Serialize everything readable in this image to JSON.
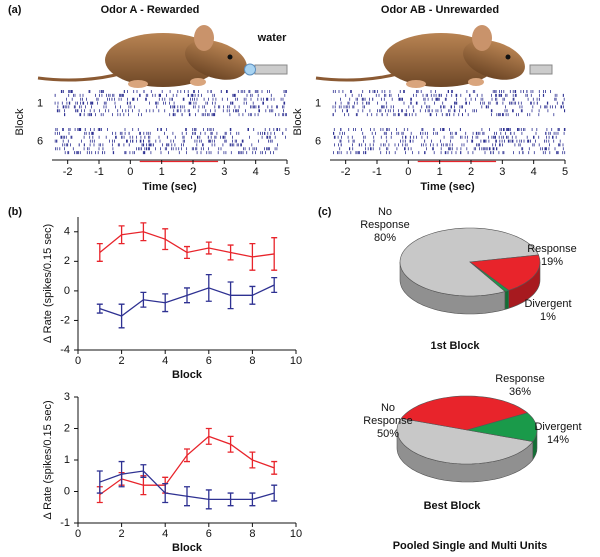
{
  "panel_labels": [
    "(a)",
    "(b)",
    "(c)"
  ],
  "caption": "Pooled Single and Multi Units",
  "chart_data": [
    {
      "type": "raster",
      "title": "Odor A - Rewarded",
      "title_color": "#e8242b",
      "annotation": "water",
      "ylabel": "Block",
      "rows": [
        "1",
        "6"
      ],
      "xlabel": "Time (sec)",
      "xlim": [
        -2.5,
        5
      ],
      "xticks": [
        -2,
        -1,
        0,
        1,
        2,
        3,
        4,
        5
      ],
      "color": "#2e3192"
    },
    {
      "type": "raster",
      "title": "Odor AB - Unrewarded",
      "title_color": "#2e3192",
      "ylabel": "Block",
      "rows": [
        "1",
        "6"
      ],
      "xlabel": "Time (sec)",
      "xlim": [
        -2.5,
        5
      ],
      "xticks": [
        -2,
        -1,
        0,
        1,
        2,
        3,
        4,
        5
      ],
      "color": "#2e3192"
    },
    {
      "type": "line",
      "xlabel": "Block",
      "ylabel": "Δ Rate (spikes/0.15 sec)",
      "x": [
        1,
        2,
        3,
        4,
        5,
        6,
        7,
        8,
        9
      ],
      "xlim": [
        0,
        10
      ],
      "xticks": [
        0,
        2,
        4,
        6,
        8,
        10
      ],
      "ylim": [
        -4,
        5
      ],
      "yticks": [
        -4,
        -2,
        0,
        2,
        4
      ],
      "series": [
        {
          "color": "#e8242b",
          "values": [
            2.6,
            3.8,
            4.0,
            3.5,
            2.6,
            2.9,
            2.6,
            2.3,
            2.5
          ],
          "errors": [
            0.6,
            0.6,
            0.6,
            0.7,
            0.4,
            0.4,
            0.5,
            0.9,
            1.1
          ]
        },
        {
          "color": "#2e3192",
          "values": [
            -1.2,
            -1.7,
            -0.6,
            -0.8,
            -0.3,
            0.2,
            -0.3,
            -0.3,
            0.4
          ],
          "errors": [
            0.3,
            0.8,
            0.5,
            0.6,
            0.5,
            0.9,
            0.9,
            0.6,
            0.5
          ]
        }
      ]
    },
    {
      "type": "line",
      "xlabel": "Block",
      "ylabel": "Δ Rate (spikes/0.15 sec)",
      "x": [
        1,
        2,
        3,
        4,
        5,
        6,
        7,
        8,
        9
      ],
      "xlim": [
        0,
        10
      ],
      "xticks": [
        0,
        2,
        4,
        6,
        8,
        10
      ],
      "ylim": [
        -1,
        3
      ],
      "yticks": [
        -1,
        0,
        1,
        2,
        3
      ],
      "series": [
        {
          "color": "#e8242b",
          "values": [
            -0.1,
            0.4,
            0.2,
            0.2,
            1.15,
            1.75,
            1.5,
            1.0,
            0.75
          ],
          "errors": [
            0.25,
            0.2,
            0.3,
            0.25,
            0.2,
            0.25,
            0.25,
            0.25,
            0.2
          ]
        },
        {
          "color": "#2e3192",
          "values": [
            0.3,
            0.55,
            0.65,
            -0.05,
            -0.15,
            -0.25,
            -0.25,
            -0.25,
            -0.05
          ],
          "errors": [
            0.35,
            0.4,
            0.2,
            0.3,
            0.3,
            0.3,
            0.2,
            0.2,
            0.25
          ]
        }
      ]
    },
    {
      "type": "pie",
      "title": "1st Block",
      "categories": [
        "No Response",
        "Response",
        "Divergent"
      ],
      "values": [
        80,
        19,
        1
      ],
      "value_labels": [
        "80%",
        "19%",
        "1%"
      ],
      "colors": [
        "#c8c8c8",
        "#e8242b",
        "#1a9a4a"
      ]
    },
    {
      "type": "pie",
      "title": "Best Block",
      "categories": [
        "No Response",
        "Response",
        "Divergent"
      ],
      "values": [
        50,
        36,
        14
      ],
      "value_labels": [
        "50%",
        "36%",
        "14%"
      ],
      "colors": [
        "#c8c8c8",
        "#e8242b",
        "#1a9a4a"
      ]
    }
  ]
}
